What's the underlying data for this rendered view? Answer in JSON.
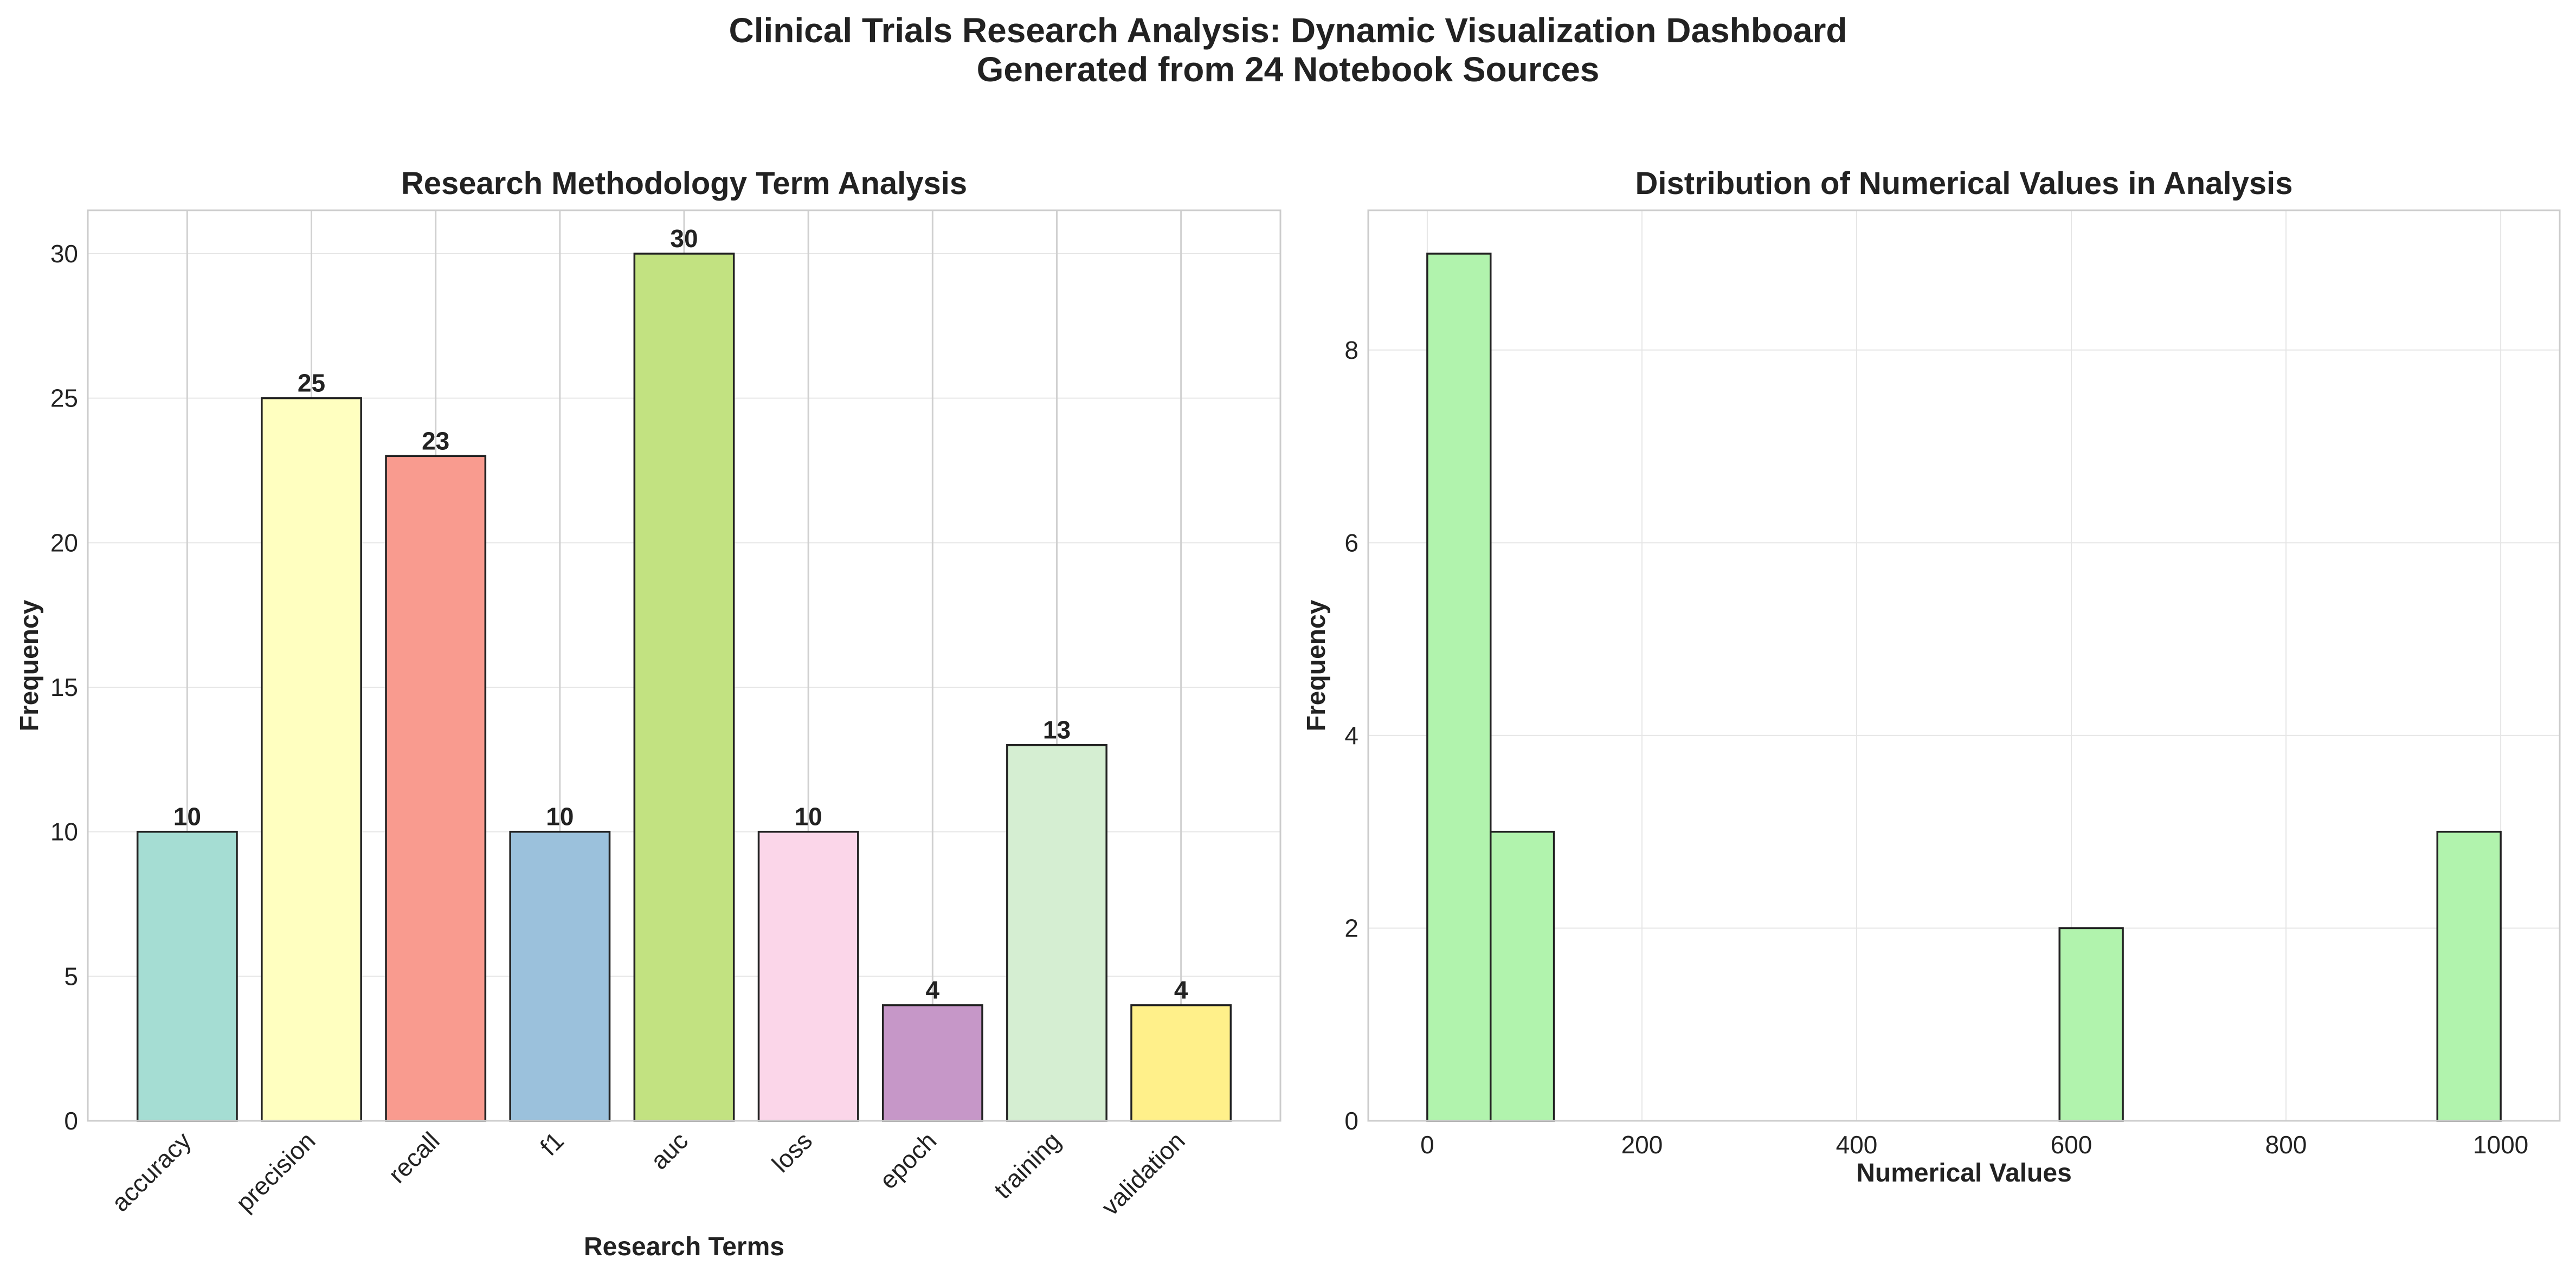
{
  "figure": {
    "title_line1": "Clinical Trials Research Analysis: Dynamic Visualization Dashboard",
    "title_line2": "Generated from 24 Notebook Sources"
  },
  "chart_data": [
    {
      "type": "bar",
      "title": "Research Methodology Term Analysis",
      "xlabel": "Research Terms",
      "ylabel": "Frequency",
      "categories": [
        "accuracy",
        "precision",
        "recall",
        "f1",
        "auc",
        "loss",
        "epoch",
        "training",
        "validation"
      ],
      "values": [
        10,
        25,
        23,
        10,
        30,
        10,
        4,
        13,
        4
      ],
      "data_labels": [
        "10",
        "25",
        "23",
        "10",
        "30",
        "10",
        "4",
        "13",
        "4"
      ],
      "colors": [
        "#a5ddd3",
        "#ffffc0",
        "#f99b8f",
        "#9bc1dc",
        "#c2e281",
        "#fbd6e9",
        "#c697c8",
        "#d5eed2",
        "#fff08a"
      ],
      "ylim": [
        0,
        31.5
      ],
      "yticks": [
        0,
        5,
        10,
        15,
        20,
        25,
        30
      ],
      "grid": true,
      "legend": "none"
    },
    {
      "type": "bar",
      "subtype": "histogram",
      "title": "Distribution of Numerical Values in Analysis",
      "xlabel": "Numerical Values",
      "ylabel": "Frequency",
      "bins": [
        {
          "start": 0,
          "end": 59,
          "count": 9
        },
        {
          "start": 59,
          "end": 118,
          "count": 3
        },
        {
          "start": 589,
          "end": 648,
          "count": 2
        },
        {
          "start": 941,
          "end": 1000,
          "count": 3
        }
      ],
      "xlim": [
        -55,
        1055
      ],
      "ylim": [
        0,
        9.45
      ],
      "xticks": [
        0,
        200,
        400,
        600,
        800,
        1000
      ],
      "yticks": [
        0,
        2,
        4,
        6,
        8
      ],
      "bar_color": "#b1f3ad",
      "grid": true,
      "legend": "none"
    }
  ]
}
